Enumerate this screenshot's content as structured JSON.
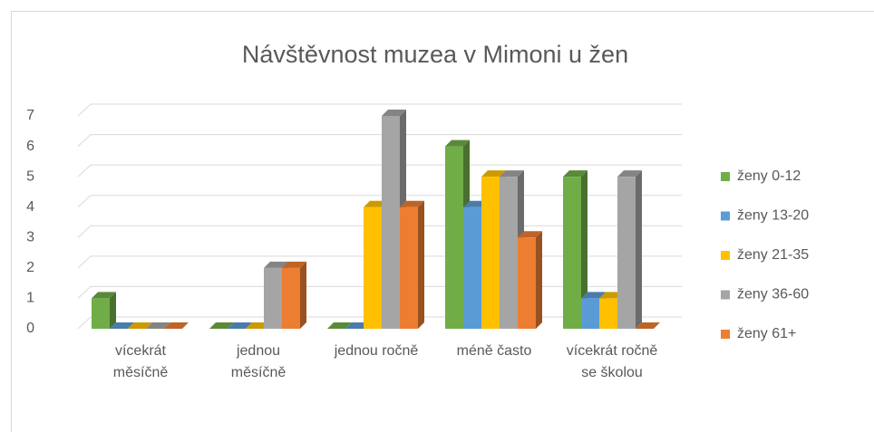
{
  "chart_data": {
    "type": "bar3d",
    "title": "Návštěvnost muzea v Mimoni u žen",
    "categories": [
      "vícekrát měsíčně",
      "jednou měsíčně",
      "jednou ročně",
      "méně často",
      "vícekrát ročně se školou"
    ],
    "series": [
      {
        "name": "ženy 0-12",
        "color": "#70ad47",
        "values": [
          1,
          0,
          0,
          6,
          5
        ]
      },
      {
        "name": "ženy 13-20",
        "color": "#5b9bd5",
        "values": [
          0,
          0,
          0,
          4,
          1
        ]
      },
      {
        "name": "ženy 21-35",
        "color": "#ffc000",
        "values": [
          0,
          0,
          4,
          5,
          1
        ]
      },
      {
        "name": "ženy 36-60",
        "color": "#a5a5a5",
        "values": [
          0,
          2,
          7,
          5,
          5
        ]
      },
      {
        "name": "ženy 61+",
        "color": "#ed7d31",
        "values": [
          0,
          2,
          4,
          3,
          0
        ]
      }
    ],
    "ylim": [
      0,
      7
    ],
    "yticks": [
      0,
      1,
      2,
      3,
      4,
      5,
      6,
      7
    ],
    "grid": true,
    "legend": "right"
  }
}
